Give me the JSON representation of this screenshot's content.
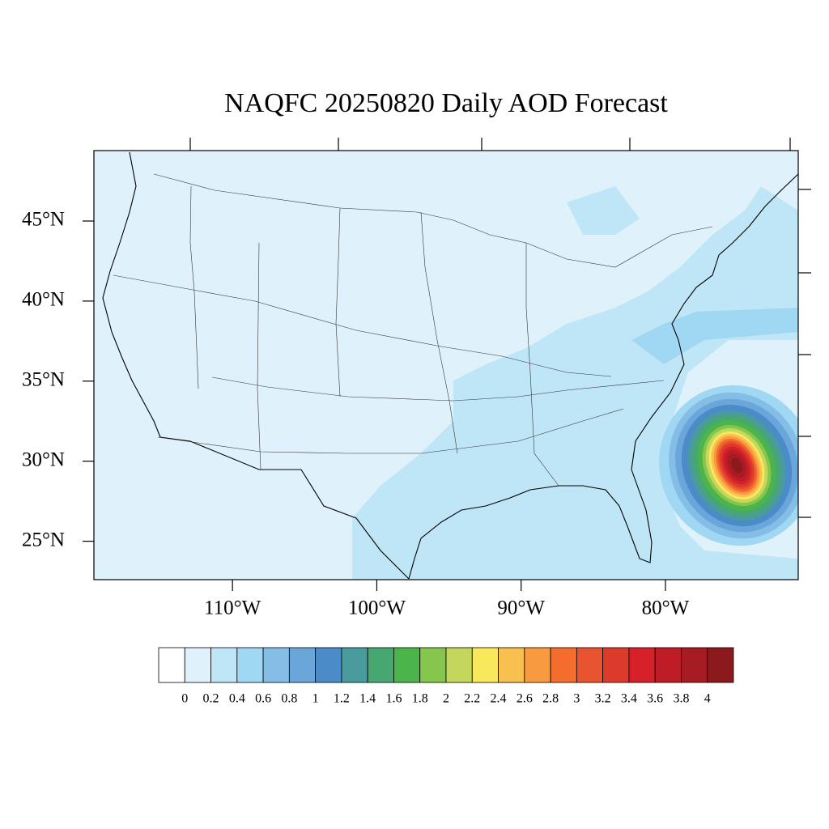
{
  "chart_data": {
    "type": "map",
    "title": "NAQFC 20250820 Daily AOD Forecast",
    "xlim": [
      -119.6,
      -70.8
    ],
    "ylim": [
      22.6,
      49.4
    ],
    "xticks": [
      {
        "value": -110,
        "label": "110°W"
      },
      {
        "value": -100,
        "label": "100°W"
      },
      {
        "value": -90,
        "label": "90°W"
      },
      {
        "value": -80,
        "label": "80°W"
      }
    ],
    "yticks": [
      {
        "value": 25,
        "label": "25°N"
      },
      {
        "value": 30,
        "label": "30°N"
      },
      {
        "value": 35,
        "label": "35°N"
      },
      {
        "value": 40,
        "label": "40°N"
      },
      {
        "value": 45,
        "label": "45°N"
      }
    ],
    "colorbar": {
      "levels": [
        0,
        0.2,
        0.4,
        0.6,
        0.8,
        1,
        1.2,
        1.4,
        1.6,
        1.8,
        2,
        2.2,
        2.4,
        2.6,
        2.8,
        3,
        3.2,
        3.4,
        3.6,
        3.8,
        4
      ],
      "colors": [
        "#ffffff",
        "#dff1fa",
        "#bfe6f7",
        "#a0d8f3",
        "#84bde5",
        "#6aa6da",
        "#4b8bc8",
        "#4a9b9e",
        "#47a771",
        "#4bb44a",
        "#86c54e",
        "#c4d75c",
        "#f7e85c",
        "#f8c04f",
        "#f89a3f",
        "#f46d2c",
        "#e85430",
        "#dc3b2b",
        "#d6212a",
        "#be1c26",
        "#a61c22",
        "#8c1a1c"
      ]
    }
  }
}
